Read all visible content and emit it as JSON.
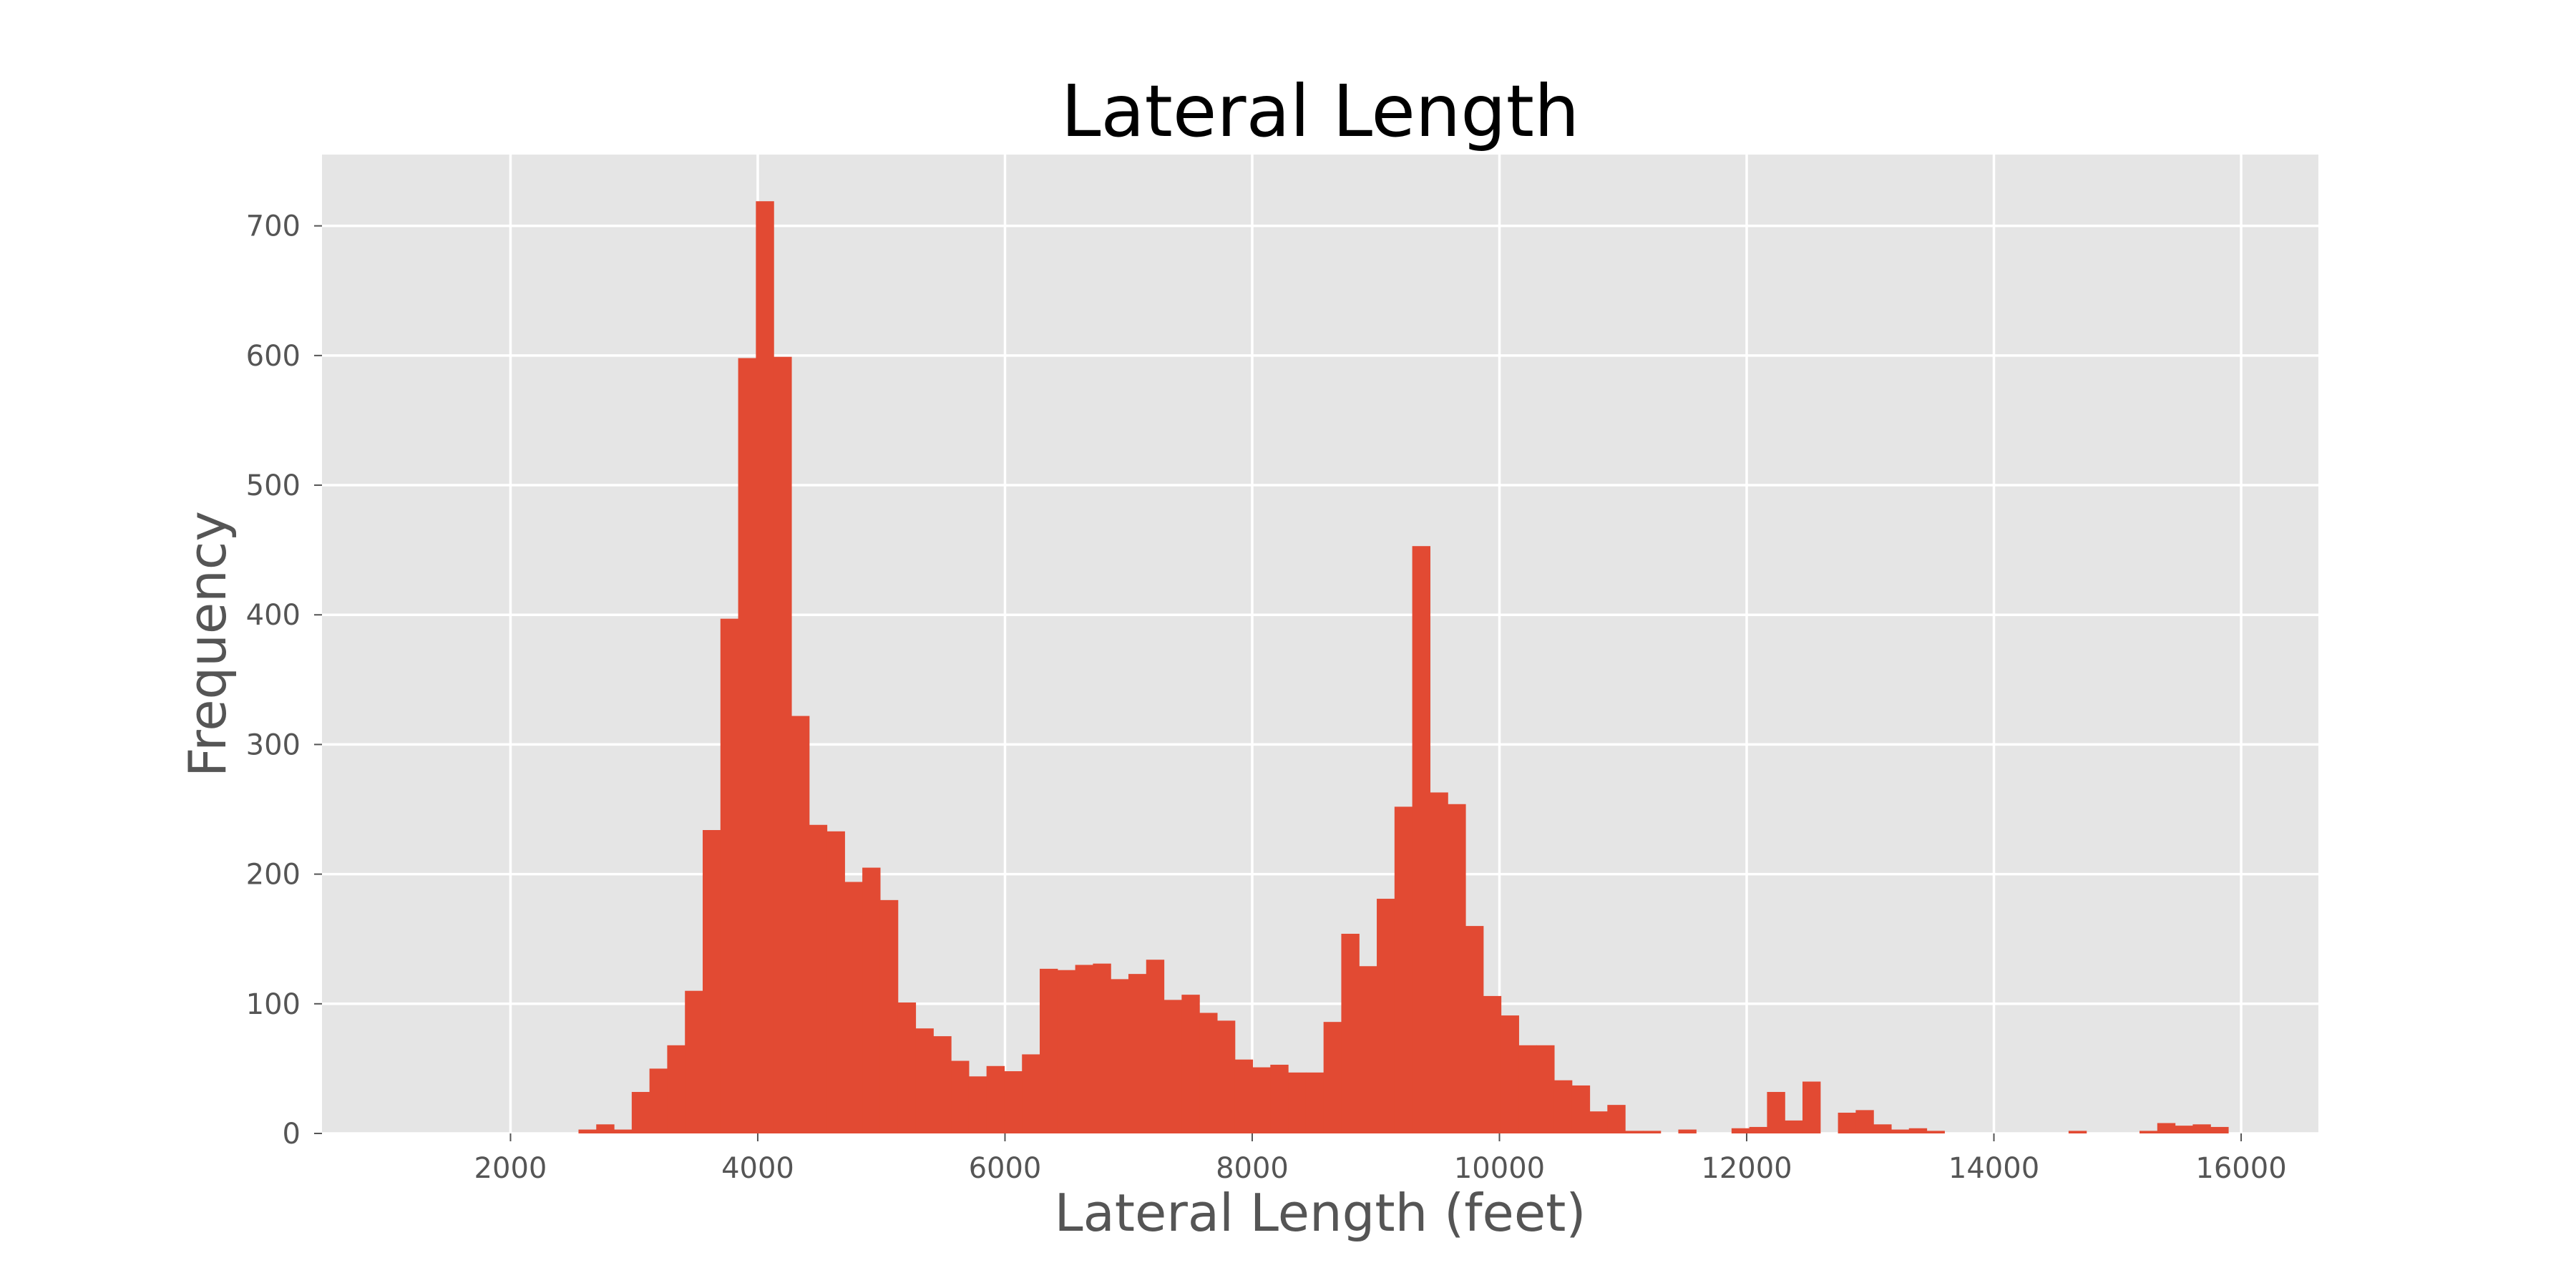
{
  "chart_data": {
    "type": "bar",
    "style": "histogram",
    "title": "Lateral Length",
    "xlabel": "Lateral Length (feet)",
    "ylabel": "Frequency",
    "xlim": [
      475,
      16625
    ],
    "ylim": [
      0,
      755
    ],
    "xticks": [
      2000,
      4000,
      6000,
      8000,
      10000,
      12000,
      14000,
      16000
    ],
    "yticks": [
      0,
      100,
      200,
      300,
      400,
      500,
      600,
      700
    ],
    "grid": true,
    "legend": "none",
    "colors": {
      "bar": "#E24A33",
      "plot_bg": "#E5E5E5",
      "grid": "#FFFFFF",
      "text": "#555555"
    },
    "bin_start": 2550,
    "bin_width": 143.5,
    "values": [
      3,
      7,
      3,
      32,
      50,
      68,
      110,
      234,
      397,
      598,
      719,
      599,
      322,
      238,
      233,
      194,
      205,
      180,
      101,
      81,
      75,
      56,
      44,
      52,
      48,
      61,
      127,
      126,
      130,
      131,
      119,
      123,
      134,
      103,
      107,
      93,
      87,
      57,
      51,
      53,
      47,
      47,
      86,
      154,
      129,
      181,
      252,
      453,
      263,
      254,
      160,
      106,
      91,
      68,
      68,
      41,
      37,
      17,
      22,
      2,
      2,
      0,
      3,
      0,
      0,
      4,
      5,
      32,
      10,
      40,
      0,
      16,
      18,
      7,
      3,
      4,
      2,
      0,
      0,
      0,
      0,
      0,
      0,
      0,
      2,
      0,
      0,
      0,
      2,
      8,
      6,
      7,
      5
    ]
  }
}
